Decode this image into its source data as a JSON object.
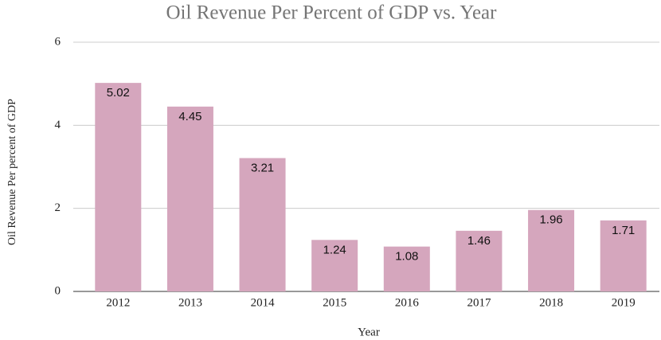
{
  "chart_data": {
    "type": "bar",
    "title": "Oil Revenue Per Percent of GDP vs. Year",
    "x_label": "Year",
    "y_label": "Oil Revenue Per percent of GDP",
    "categories": [
      "2012",
      "2013",
      "2014",
      "2015",
      "2016",
      "2017",
      "2018",
      "2019"
    ],
    "values": [
      5.02,
      4.45,
      3.21,
      1.24,
      1.08,
      1.46,
      1.96,
      1.71
    ],
    "color": "#d5a6bd",
    "ylim": [
      0,
      6
    ],
    "yticks": [
      0,
      2,
      4,
      6
    ],
    "grid": true
  }
}
